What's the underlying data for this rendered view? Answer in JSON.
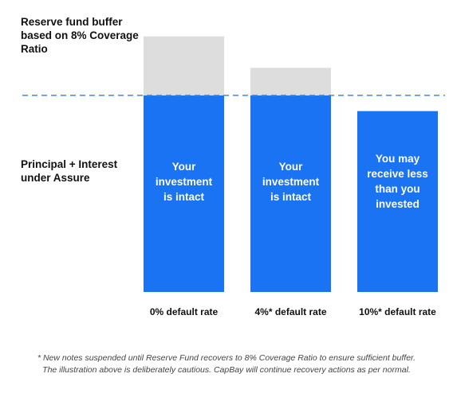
{
  "chart_data": {
    "type": "bar",
    "stacked": true,
    "categories": [
      "0% default rate",
      "4%* default rate",
      "10%* default rate"
    ],
    "series": [
      {
        "name": "Principal + Interest under Assure",
        "values": [
          100,
          100,
          92
        ],
        "color": "#1a73f2"
      },
      {
        "name": "Reserve fund buffer based on 8% Coverage Ratio",
        "values": [
          30,
          14,
          0
        ],
        "color": "#dddddd"
      }
    ],
    "bar_labels": [
      "Your\ninvestment\nis intact",
      "Your\ninvestment\nis intact",
      "You may\nreceive less\nthan you\ninvested"
    ],
    "reference_line": {
      "value": 100,
      "style": "dashed",
      "color": "#3b8bea"
    },
    "ylim": [
      0,
      140
    ],
    "grid": false,
    "legend": "none"
  },
  "labels": {
    "reserve": "Reserve fund buffer based on 8% Coverage Ratio",
    "principal": "Principal + Interest under Assure"
  },
  "footnote": {
    "line1": "* New notes suspended until Reserve Fund recovers to 8% Coverage Ratio to ensure sufficient buffer.",
    "line2": "The illustration above is deliberately cautious. CapBay will continue recovery actions as per normal."
  }
}
